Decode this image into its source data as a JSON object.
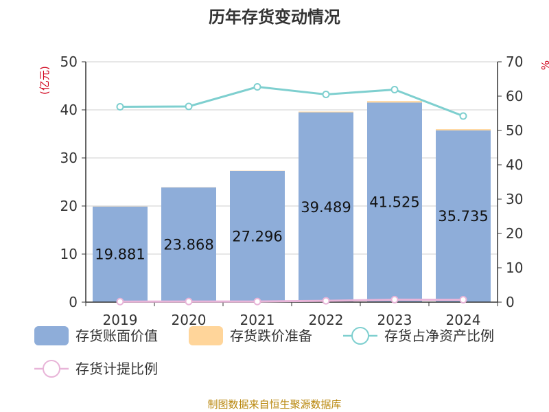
{
  "chart_data": {
    "type": "bar",
    "title": "历年存货变动情况",
    "categories": [
      "2019",
      "2020",
      "2021",
      "2022",
      "2023",
      "2024"
    ],
    "left_axis": {
      "unit": "(亿元)",
      "ylim": [
        0,
        50
      ],
      "ticks": [
        0,
        10,
        20,
        30,
        40,
        50
      ]
    },
    "right_axis": {
      "unit": "%",
      "ylim": [
        0,
        70
      ],
      "ticks": [
        0,
        10,
        20,
        30,
        40,
        50,
        60,
        70
      ]
    },
    "series": [
      {
        "name": "存货账面价值",
        "kind": "bar",
        "axis": "left",
        "color": "#8eadd9",
        "values": [
          19.881,
          23.868,
          27.296,
          39.489,
          41.525,
          35.735
        ]
      },
      {
        "name": "存货跌价准备",
        "kind": "bar",
        "axis": "left",
        "stacked": true,
        "color": "#ffd59a",
        "values": [
          0.03,
          0.04,
          0.05,
          0.15,
          0.3,
          0.25
        ]
      },
      {
        "name": "存货占净资产比例",
        "kind": "line",
        "axis": "right",
        "color": "#7ecfcf",
        "values": [
          56.9,
          57.0,
          62.7,
          60.5,
          61.9,
          54.2
        ]
      },
      {
        "name": "存货计提比例",
        "kind": "line",
        "axis": "right",
        "color": "#e8b4d8",
        "values": [
          0.15,
          0.17,
          0.18,
          0.38,
          0.72,
          0.7
        ]
      }
    ],
    "grid": true,
    "legend_position": "bottom"
  },
  "footer": {
    "source": "制图数据来自恒生聚源数据库"
  }
}
